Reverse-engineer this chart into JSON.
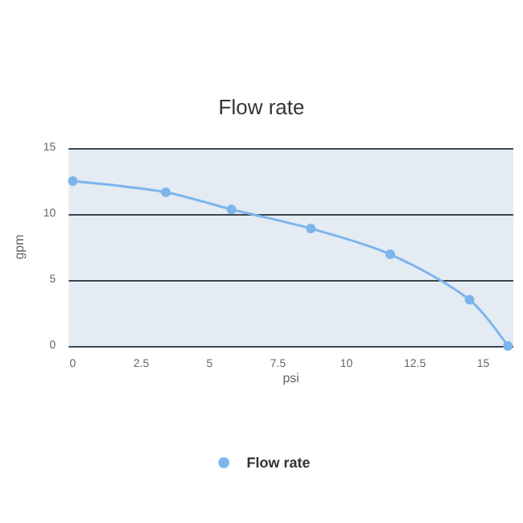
{
  "chart_data": {
    "type": "line",
    "title": "Flow rate",
    "xlabel": "psi",
    "ylabel": "gpm",
    "x": [
      0,
      3.4,
      5.8,
      8.7,
      11.6,
      14.5,
      15.9
    ],
    "series": [
      {
        "name": "Flow rate",
        "color": "#7cb5ec",
        "values": [
          12.5,
          11.65,
          10.35,
          8.9,
          6.95,
          3.5,
          0
        ]
      }
    ],
    "xlim": [
      -0.15,
      16.1
    ],
    "xticks": [
      0,
      2.5,
      5,
      7.5,
      10,
      12.5,
      15
    ],
    "ylim": [
      0,
      15
    ],
    "yticks": [
      0,
      5,
      10,
      15
    ],
    "grid": "y",
    "legend": "bottom",
    "marker": "circle",
    "line_style": "solid"
  }
}
